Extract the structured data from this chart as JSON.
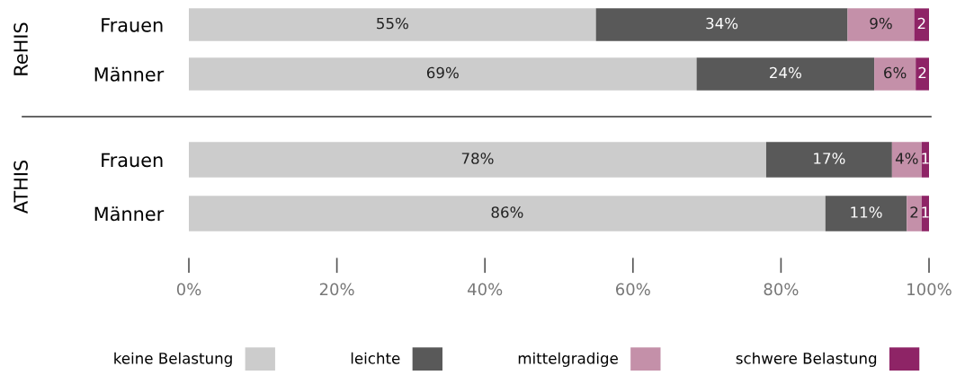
{
  "chart_data": [
    {
      "type": "bar",
      "orientation": "horizontal",
      "stacked": true,
      "ylabel": "ReHIS",
      "categories": [
        "Frauen",
        "Männer"
      ],
      "xlim": [
        0,
        100
      ],
      "tick_labels": "y",
      "legend": "bottom",
      "series": [
        {
          "name": "keine Belastung",
          "color": "#cccccc",
          "values": [
            55,
            68.6
          ],
          "value_labels": [
            "55%",
            "69%"
          ]
        },
        {
          "name": "leichte",
          "color": "#595959",
          "values": [
            34,
            24
          ],
          "value_labels": [
            "34%",
            "24%"
          ]
        },
        {
          "name": "mittelgradige",
          "color": "#c490a9",
          "values": [
            9,
            5.6
          ],
          "value_labels": [
            "9%",
            "6%"
          ]
        },
        {
          "name": "schwere Belastung",
          "color": "#8e2466",
          "values": [
            2,
            1.8
          ],
          "value_labels": [
            "2",
            "2"
          ]
        }
      ]
    },
    {
      "type": "bar",
      "orientation": "horizontal",
      "stacked": true,
      "ylabel": "ATHIS",
      "categories": [
        "Frauen",
        "Männer"
      ],
      "xlim": [
        0,
        100
      ],
      "legend": "bottom",
      "xticks": [
        {
          "value": 0,
          "label": "0%"
        },
        {
          "value": 20,
          "label": "20%"
        },
        {
          "value": 40,
          "label": "40%"
        },
        {
          "value": 60,
          "label": "60%"
        },
        {
          "value": 80,
          "label": "80%"
        },
        {
          "value": 100,
          "label": "100%"
        }
      ],
      "series": [
        {
          "name": "keine Belastung",
          "color": "#cccccc",
          "values": [
            78,
            86
          ],
          "value_labels": [
            "78%",
            "86%"
          ]
        },
        {
          "name": "leichte",
          "color": "#595959",
          "values": [
            17,
            11
          ],
          "value_labels": [
            "17%",
            "11%"
          ]
        },
        {
          "name": "mittelgradige",
          "color": "#c490a9",
          "values": [
            4,
            2
          ],
          "value_labels": [
            "4%",
            "2"
          ]
        },
        {
          "name": "schwere Belastung",
          "color": "#8e2466",
          "values": [
            1,
            1
          ],
          "value_labels": [
            "1",
            "1"
          ]
        }
      ]
    }
  ]
}
